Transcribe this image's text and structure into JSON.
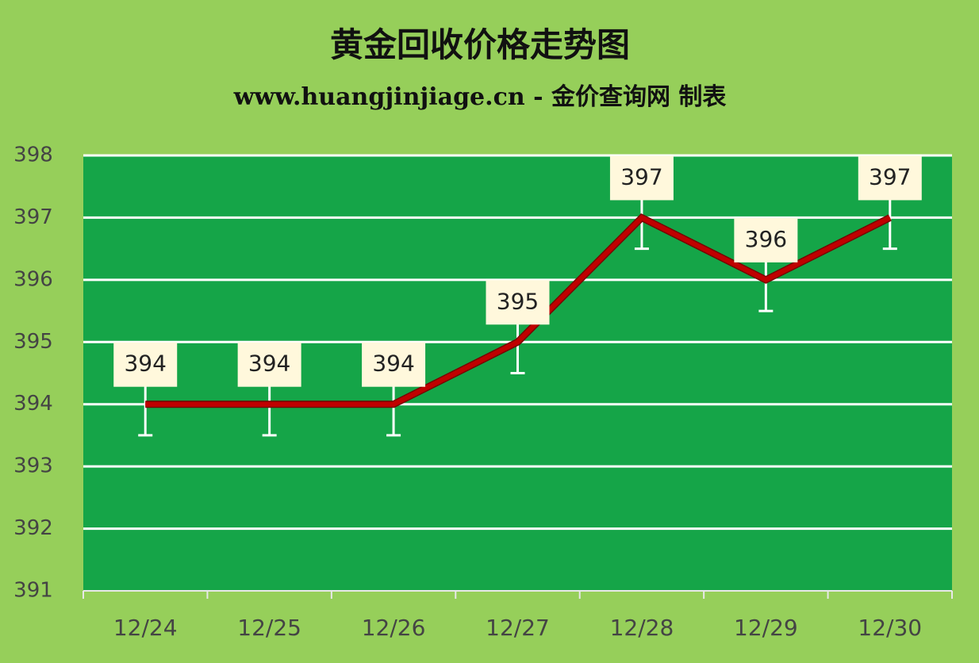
{
  "chart_data": {
    "type": "line",
    "title": "黄金回收价格走势图",
    "subtitle": "www.huangjinjiage.cn - 金价查询网 制表",
    "categories": [
      "12/24",
      "12/25",
      "12/26",
      "12/27",
      "12/28",
      "12/29",
      "12/30"
    ],
    "values": [
      394,
      394,
      394,
      395,
      397,
      396,
      397
    ],
    "errors": [
      0.5,
      0.5,
      0.5,
      0.5,
      0.5,
      0.5,
      0.5
    ],
    "color": "#c00000",
    "ylim": [
      391,
      398
    ],
    "yticks": [
      391,
      392,
      393,
      394,
      395,
      396,
      397,
      398
    ],
    "grid": true
  }
}
